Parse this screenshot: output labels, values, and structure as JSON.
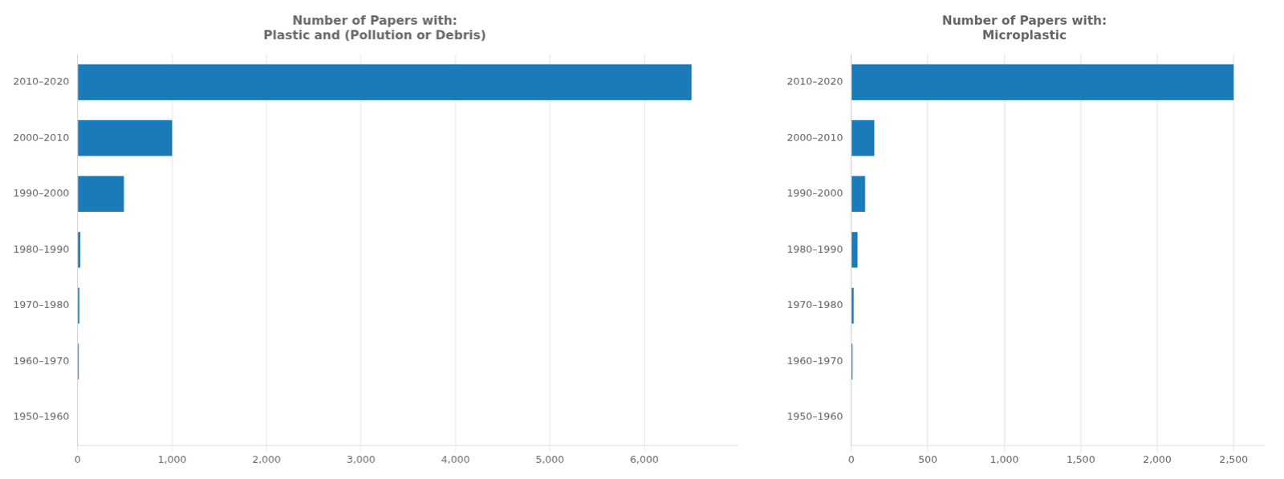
{
  "chart_data": [
    {
      "type": "bar",
      "orientation": "horizontal",
      "title": [
        "Number of Papers with:",
        "Plastic and (Pollution or Debris)"
      ],
      "categories": [
        "2010–2020",
        "2000–2010",
        "1990–2000",
        "1980–1990",
        "1970–1980",
        "1960–1970",
        "1950–1960"
      ],
      "values": [
        6500,
        1000,
        490,
        28,
        18,
        12,
        0
      ],
      "color": "#1A7BB8",
      "xlim": [
        0,
        7000
      ],
      "xticks": [
        0,
        {
          "value": 1000,
          "label": "1,000"
        },
        {
          "value": 2000,
          "label": "2,000"
        },
        {
          "value": 3000,
          "label": "3,000"
        },
        {
          "value": 4000,
          "label": "4,000"
        },
        {
          "value": 5000,
          "label": "5,000"
        },
        {
          "value": 6000,
          "label": "6,000"
        }
      ],
      "grid": true
    },
    {
      "type": "bar",
      "orientation": "horizontal",
      "title": [
        "Number of Papers with:",
        "Microplastic"
      ],
      "categories": [
        "2010–2020",
        "2000–2010",
        "1990–2000",
        "1980–1990",
        "1970–1980",
        "1960–1970",
        "1950–1960"
      ],
      "values": [
        2500,
        150,
        90,
        40,
        15,
        8,
        0
      ],
      "color": "#1A7BB8",
      "xlim": [
        0,
        2700
      ],
      "xticks": [
        0,
        500,
        {
          "value": 1000,
          "label": "1,000"
        },
        {
          "value": 1500,
          "label": "1,500"
        },
        {
          "value": 2000,
          "label": "2,000"
        },
        {
          "value": 2500,
          "label": "2,500"
        }
      ],
      "grid": true
    }
  ]
}
